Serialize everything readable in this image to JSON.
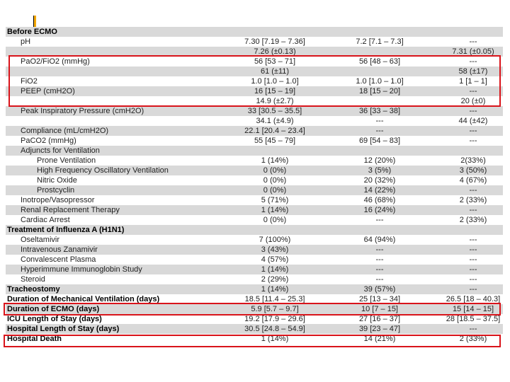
{
  "rows": [
    {
      "label": "Before ECMO",
      "indent": 0,
      "bold": true,
      "shade": true,
      "c1": "",
      "c2": "",
      "c3": ""
    },
    {
      "label": "pH",
      "indent": 1,
      "bold": false,
      "shade": false,
      "c1": "7.30 [7.19 – 7.36]",
      "c2": "7.2 [7.1 – 7.3]",
      "c3": "---"
    },
    {
      "label": "",
      "indent": 1,
      "bold": false,
      "shade": true,
      "c1": "7.26 (±0.13)",
      "c2": "",
      "c3": "7.31 (±0.05)"
    },
    {
      "label": "PaO2/FiO2 (mmHg)",
      "indent": 1,
      "bold": false,
      "shade": false,
      "c1": "56 [53 – 71]",
      "c2": "56 [48 – 63]",
      "c3": "---"
    },
    {
      "label": "",
      "indent": 1,
      "bold": false,
      "shade": true,
      "c1": "61 (±11)",
      "c2": "",
      "c3": "58 (±17)"
    },
    {
      "label": "FiO2",
      "indent": 1,
      "bold": false,
      "shade": false,
      "c1": "1.0 [1.0 – 1.0]",
      "c2": "1.0 [1.0 – 1.0]",
      "c3": "1 [1 – 1]"
    },
    {
      "label": "PEEP (cmH2O)",
      "indent": 1,
      "bold": false,
      "shade": true,
      "c1": "16 [15 – 19]",
      "c2": "18 [15 – 20]",
      "c3": "---"
    },
    {
      "label": "",
      "indent": 1,
      "bold": false,
      "shade": false,
      "c1": "14.9 (±2.7)",
      "c2": "",
      "c3": "20 (±0)"
    },
    {
      "label": "Peak Inspiratory Pressure (cmH2O)",
      "indent": 1,
      "bold": false,
      "shade": true,
      "c1": "33 [30.5 – 35.5]",
      "c2": "36 [33 – 38]",
      "c3": "---"
    },
    {
      "label": "",
      "indent": 1,
      "bold": false,
      "shade": false,
      "c1": "34.1 (±4.9)",
      "c2": "---",
      "c3": "44 (±42)"
    },
    {
      "label": "Compliance (mL/cmH2O)",
      "indent": 1,
      "bold": false,
      "shade": true,
      "c1": "22.1 [20.4 – 23.4]",
      "c2": "---",
      "c3": "---"
    },
    {
      "label": "PaCO2 (mmHg)",
      "indent": 1,
      "bold": false,
      "shade": false,
      "c1": "55 [45 – 79]",
      "c2": "69 [54 – 83]",
      "c3": "---"
    },
    {
      "label": "Adjuncts for Ventilation",
      "indent": 1,
      "bold": false,
      "shade": true,
      "c1": "",
      "c2": "",
      "c3": ""
    },
    {
      "label": "Prone Ventilation",
      "indent": 2,
      "bold": false,
      "shade": false,
      "c1": "1 (14%)",
      "c2": "12 (20%)",
      "c3": "2(33%)"
    },
    {
      "label": "High Frequency Oscillatory Ventilation",
      "indent": 2,
      "bold": false,
      "shade": true,
      "c1": "0 (0%)",
      "c2": "3 (5%)",
      "c3": "3 (50%)"
    },
    {
      "label": "Nitric Oxide",
      "indent": 2,
      "bold": false,
      "shade": false,
      "c1": "0 (0%)",
      "c2": "20 (32%)",
      "c3": "4 (67%)"
    },
    {
      "label": "Prostcyclin",
      "indent": 2,
      "bold": false,
      "shade": true,
      "c1": "0 (0%)",
      "c2": "14 (22%)",
      "c3": "---"
    },
    {
      "label": "Inotrope/Vasopressor",
      "indent": 1,
      "bold": false,
      "shade": false,
      "c1": "5 (71%)",
      "c2": "46 (68%)",
      "c3": "2 (33%)"
    },
    {
      "label": "Renal Replacement Therapy",
      "indent": 1,
      "bold": false,
      "shade": true,
      "c1": "1 (14%)",
      "c2": "16 (24%)",
      "c3": "---"
    },
    {
      "label": "Cardiac Arrest",
      "indent": 1,
      "bold": false,
      "shade": false,
      "c1": "0 (0%)",
      "c2": "---",
      "c3": "2 (33%)"
    },
    {
      "label": "Treatment of Influenza A (H1N1)",
      "indent": 0,
      "bold": true,
      "shade": true,
      "c1": "",
      "c2": "",
      "c3": ""
    },
    {
      "label": "Oseltamivir",
      "indent": 1,
      "bold": false,
      "shade": false,
      "c1": "7 (100%)",
      "c2": "64 (94%)",
      "c3": "---"
    },
    {
      "label": "Intravenous Zanamivir",
      "indent": 1,
      "bold": false,
      "shade": true,
      "c1": "3 (43%)",
      "c2": "---",
      "c3": "---"
    },
    {
      "label": "Convalescent Plasma",
      "indent": 1,
      "bold": false,
      "shade": false,
      "c1": "4 (57%)",
      "c2": "---",
      "c3": "---"
    },
    {
      "label": "Hyperimmune Immunoglobin Study",
      "indent": 1,
      "bold": false,
      "shade": true,
      "c1": "1 (14%)",
      "c2": "---",
      "c3": "---"
    },
    {
      "label": "Steroid",
      "indent": 1,
      "bold": false,
      "shade": false,
      "c1": "2 (29%)",
      "c2": "---",
      "c3": "---"
    },
    {
      "label": "Tracheostomy",
      "indent": 0,
      "bold": true,
      "shade": true,
      "c1": "1 (14%)",
      "c2": "39 (57%)",
      "c3": "---"
    },
    {
      "label": "Duration of Mechanical Ventilation (days)",
      "indent": 0,
      "bold": true,
      "shade": false,
      "c1": "18.5 [11.4 – 25.3]",
      "c2": "25 [13 – 34]",
      "c3": "26.5 [18 – 40.3]"
    },
    {
      "label": "Duration of ECMO (days)",
      "indent": 0,
      "bold": true,
      "shade": true,
      "c1": "5.9 [5.7 – 9.7]",
      "c2": "10 [7 – 15]",
      "c3": "15 [14 – 15]"
    },
    {
      "label": "ICU Length of Stay (days)",
      "indent": 0,
      "bold": true,
      "shade": false,
      "c1": "19.2 [17.9 – 29.6]",
      "c2": "27 [16 – 37]",
      "c3": "28 [18.5 – 37.5]"
    },
    {
      "label": "Hospital Length of Stay (days)",
      "indent": 0,
      "bold": true,
      "shade": true,
      "c1": "30.5 [24.8 – 54.9]",
      "c2": "39 [23 – 47]",
      "c3": "---"
    },
    {
      "label": "Hospital Death",
      "indent": 0,
      "bold": true,
      "shade": false,
      "c1": "1 (14%)",
      "c2": "14 (21%)",
      "c3": "2 (33%)"
    }
  ],
  "colors": {
    "shade": "#d9d9d9",
    "highlight": "#d9141b",
    "accent": "#f5a800"
  }
}
